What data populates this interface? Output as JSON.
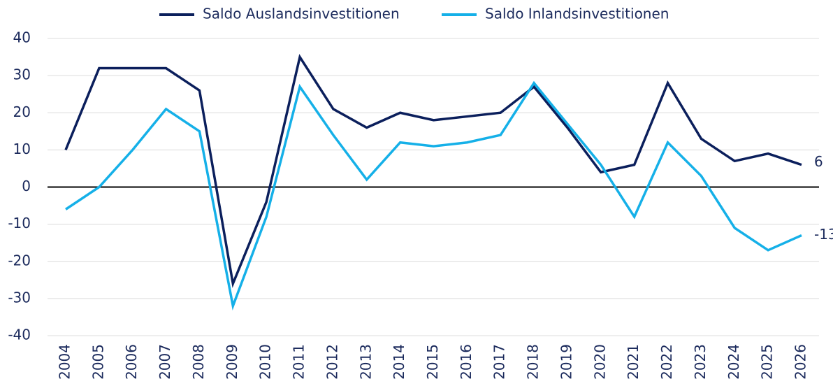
{
  "chart_data": {
    "type": "line",
    "categories": [
      "2004",
      "2005",
      "2006",
      "2007",
      "2008",
      "2009",
      "2010",
      "2011",
      "2012",
      "2013",
      "2014",
      "2015",
      "2016",
      "2017",
      "2018",
      "2019",
      "2020",
      "2021",
      "2022",
      "2023",
      "2024",
      "2025",
      "2026"
    ],
    "series": [
      {
        "name": "Saldo Auslandsinvestitionen",
        "color": "#0b1f5c",
        "values": [
          10,
          32,
          32,
          32,
          26,
          -26,
          -4,
          35,
          21,
          16,
          20,
          18,
          19,
          20,
          27,
          16,
          4,
          6,
          28,
          13,
          7,
          9,
          6
        ]
      },
      {
        "name": "Saldo Inlandsinvestitionen",
        "color": "#15b0e8",
        "values": [
          -6,
          0,
          10,
          21,
          15,
          -32,
          -8,
          27,
          14,
          2,
          12,
          11,
          12,
          14,
          28,
          17,
          6,
          -8,
          12,
          3,
          -11,
          -17,
          -13
        ]
      }
    ],
    "ylim": [
      -40,
      40
    ],
    "yticks": [
      -40,
      -30,
      -20,
      -10,
      0,
      10,
      20,
      30,
      40
    ],
    "grid": true,
    "legend": "top"
  }
}
